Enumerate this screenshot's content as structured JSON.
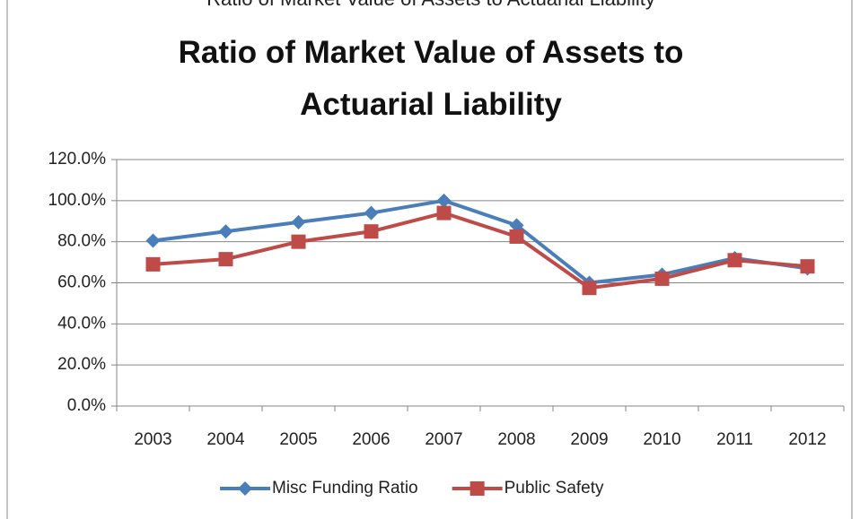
{
  "chart_data": {
    "type": "line",
    "caption": "Ratio of Market Value of Assets to Actuarial Liability",
    "title": "Ratio of Market Value of Assets to Actuarial Liability",
    "categories": [
      "2003",
      "2004",
      "2005",
      "2006",
      "2007",
      "2008",
      "2009",
      "2010",
      "2011",
      "2012"
    ],
    "series": [
      {
        "name": "Misc Funding Ratio",
        "color": "#4a7ebb",
        "marker": "diamond",
        "values": [
          80.5,
          85,
          89.5,
          94,
          100,
          88,
          60,
          64,
          72,
          67
        ]
      },
      {
        "name": "Public Safety",
        "color": "#be4b48",
        "marker": "square",
        "values": [
          69,
          71.5,
          80,
          85,
          94,
          82.5,
          57.5,
          62,
          71,
          68
        ]
      }
    ],
    "ylim": [
      0,
      120
    ],
    "yticks": [
      {
        "value": 0,
        "label": "0.0%"
      },
      {
        "value": 20,
        "label": "20.0%"
      },
      {
        "value": 40,
        "label": "40.0%"
      },
      {
        "value": 60,
        "label": "60.0%"
      },
      {
        "value": 80,
        "label": "80.0%"
      },
      {
        "value": 100,
        "label": "100.0%"
      },
      {
        "value": 120,
        "label": "120.0%"
      }
    ],
    "grid": true,
    "legend": "bottom"
  }
}
